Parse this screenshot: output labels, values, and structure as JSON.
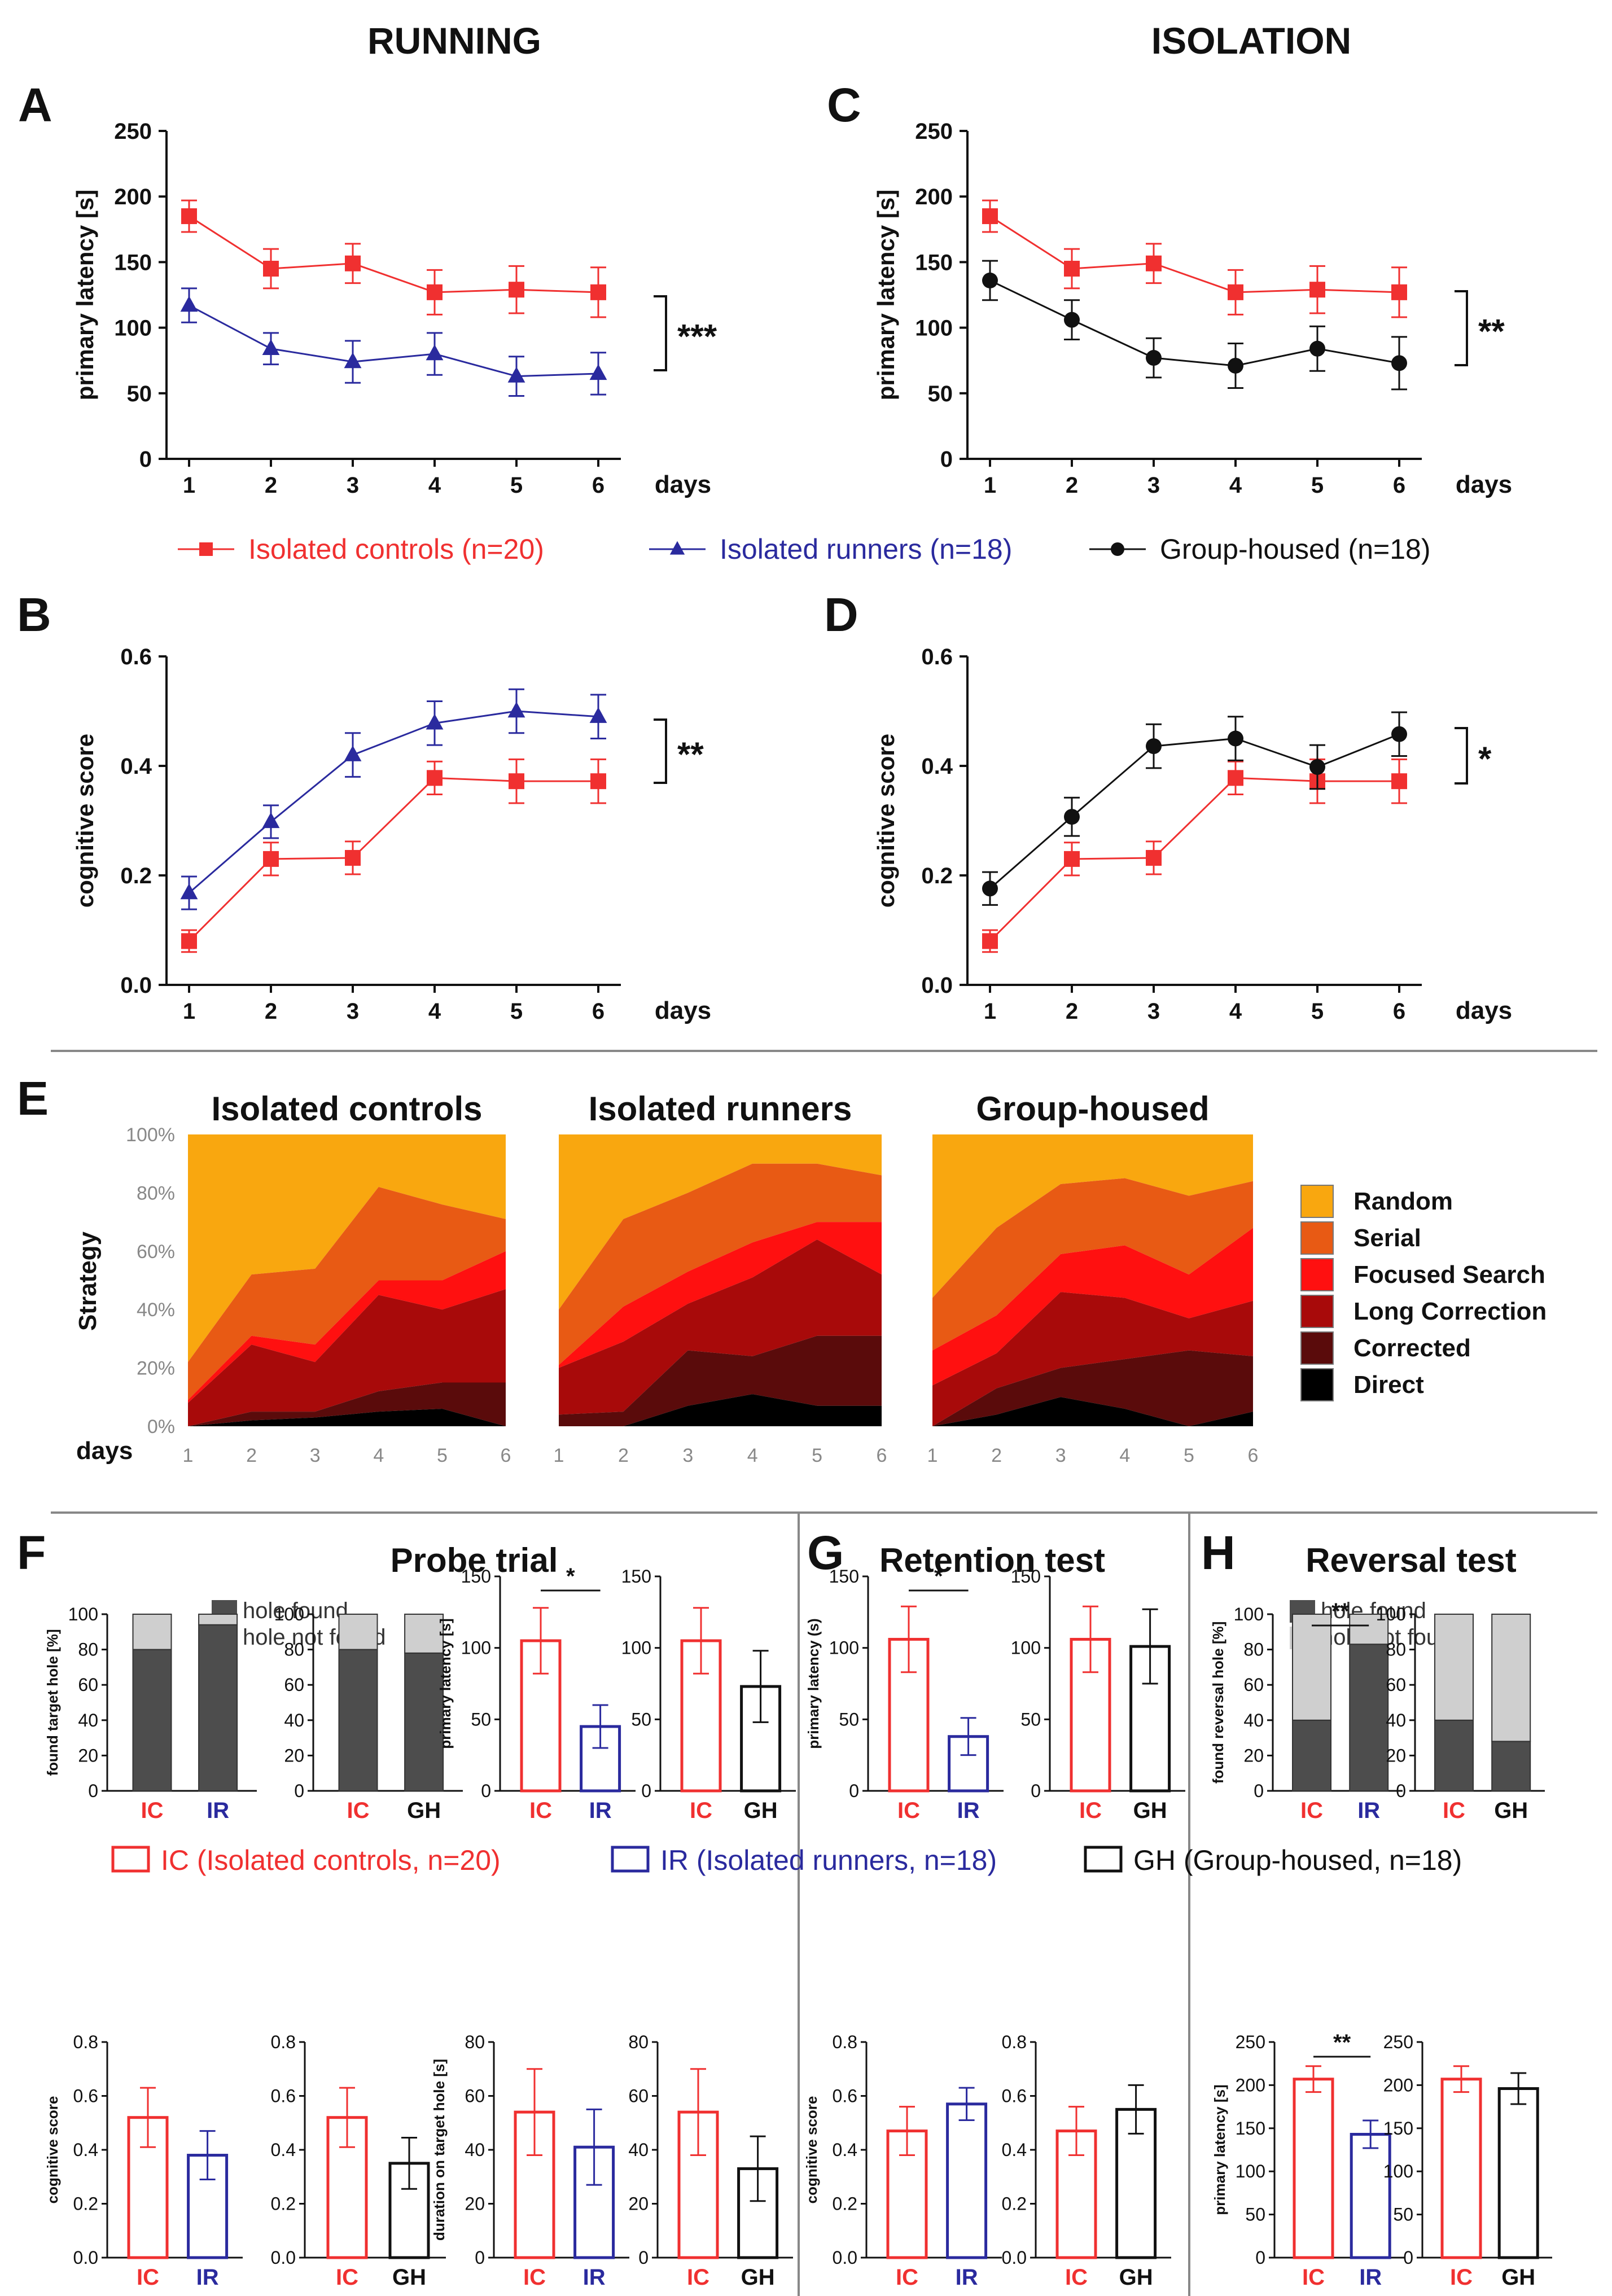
{
  "colors": {
    "ic": "#f03030",
    "ir": "#2a2a9e",
    "gh": "#111111",
    "dark_bar": "#4d4d4d",
    "light_bar": "#cfcfcf",
    "strategy": [
      "#000000",
      "#5a0b0b",
      "#a80a0a",
      "#ff1010",
      "#e85a14",
      "#f9a70f"
    ]
  },
  "headers": {
    "running": "RUNNING",
    "isolation": "ISOLATION"
  },
  "panel_letters": [
    "A",
    "B",
    "C",
    "D",
    "E",
    "F",
    "G",
    "H"
  ],
  "days_label": "days",
  "legend_top": [
    {
      "key": "ic",
      "label": "Isolated controls (n=20)",
      "marker": "square"
    },
    {
      "key": "ir",
      "label": "Isolated runners (n=18)",
      "marker": "triangle"
    },
    {
      "key": "gh",
      "label": "Group-housed (n=18)",
      "marker": "circle"
    }
  ],
  "chart_data": [
    {
      "id": "A",
      "type": "line",
      "title": "",
      "xlabel": "days",
      "ylabel": "primary latency [s]",
      "x": [
        1,
        2,
        3,
        4,
        5,
        6
      ],
      "ylim": [
        0,
        250
      ],
      "yticks": [
        0,
        50,
        100,
        150,
        200,
        250
      ],
      "significance": "***",
      "series": [
        {
          "name": "Isolated controls (n=20)",
          "key": "ic",
          "marker": "square",
          "values": [
            185,
            145,
            149,
            127,
            129,
            127
          ],
          "err": [
            12,
            15,
            15,
            17,
            18,
            19
          ]
        },
        {
          "name": "Isolated runners (n=18)",
          "key": "ir",
          "marker": "triangle",
          "values": [
            117,
            84,
            74,
            80,
            63,
            65
          ],
          "err": [
            13,
            12,
            16,
            16,
            15,
            16
          ]
        }
      ]
    },
    {
      "id": "B",
      "type": "line",
      "title": "",
      "xlabel": "days",
      "ylabel": "cognitive score",
      "x": [
        1,
        2,
        3,
        4,
        5,
        6
      ],
      "ylim": [
        0,
        0.6
      ],
      "yticks": [
        "0.0",
        "0.2",
        "0.4",
        "0.6"
      ],
      "significance": "**",
      "series": [
        {
          "name": "Isolated controls (n=20)",
          "key": "ic",
          "marker": "square",
          "values": [
            0.08,
            0.23,
            0.232,
            0.378,
            0.372,
            0.372
          ],
          "err": [
            0.02,
            0.03,
            0.03,
            0.03,
            0.04,
            0.04
          ]
        },
        {
          "name": "Isolated runners (n=18)",
          "key": "ir",
          "marker": "triangle",
          "values": [
            0.168,
            0.298,
            0.42,
            0.478,
            0.5,
            0.49
          ],
          "err": [
            0.03,
            0.03,
            0.04,
            0.04,
            0.04,
            0.04
          ]
        }
      ]
    },
    {
      "id": "C",
      "type": "line",
      "title": "",
      "xlabel": "days",
      "ylabel": "primary latency [s]",
      "x": [
        1,
        2,
        3,
        4,
        5,
        6
      ],
      "ylim": [
        0,
        250
      ],
      "yticks": [
        0,
        50,
        100,
        150,
        200,
        250
      ],
      "significance": "**",
      "series": [
        {
          "name": "Isolated controls (n=20)",
          "key": "ic",
          "marker": "square",
          "values": [
            185,
            145,
            149,
            127,
            129,
            127
          ],
          "err": [
            12,
            15,
            15,
            17,
            18,
            19
          ]
        },
        {
          "name": "Group-housed (n=18)",
          "key": "gh",
          "marker": "circle",
          "values": [
            136,
            106,
            77,
            71,
            84,
            73
          ],
          "err": [
            15,
            15,
            15,
            17,
            17,
            20
          ]
        }
      ]
    },
    {
      "id": "D",
      "type": "line",
      "title": "",
      "xlabel": "days",
      "ylabel": "cognitive score",
      "x": [
        1,
        2,
        3,
        4,
        5,
        6
      ],
      "ylim": [
        0,
        0.6
      ],
      "yticks": [
        "0.0",
        "0.2",
        "0.4",
        "0.6"
      ],
      "significance": "*",
      "series": [
        {
          "name": "Isolated controls (n=20)",
          "key": "ic",
          "marker": "square",
          "values": [
            0.08,
            0.23,
            0.232,
            0.378,
            0.372,
            0.372
          ],
          "err": [
            0.02,
            0.03,
            0.03,
            0.03,
            0.04,
            0.04
          ]
        },
        {
          "name": "Group-housed (n=18)",
          "key": "gh",
          "marker": "circle",
          "values": [
            0.176,
            0.307,
            0.436,
            0.45,
            0.398,
            0.458
          ],
          "err": [
            0.03,
            0.035,
            0.04,
            0.04,
            0.04,
            0.04
          ]
        }
      ]
    },
    {
      "id": "E",
      "type": "area",
      "ylabel": "Strategy",
      "xlabel": "days",
      "yticks": [
        "0%",
        "20%",
        "40%",
        "60%",
        "80%",
        "100%"
      ],
      "x": [
        1,
        2,
        3,
        4,
        5,
        6
      ],
      "strategies": [
        "Direct",
        "Corrected",
        "Long Correction",
        "Focused Search",
        "Serial",
        "Random"
      ],
      "legend_order": [
        "Random",
        "Serial",
        "Focused Search",
        "Long Correction",
        "Corrected",
        "Direct"
      ],
      "panels": [
        {
          "title": "Isolated controls",
          "cumulative": [
            [
              0,
              2,
              3,
              5,
              6,
              0
            ],
            [
              0,
              5,
              5,
              12,
              15,
              15
            ],
            [
              8,
              28,
              22,
              45,
              40,
              47
            ],
            [
              9,
              31,
              28,
              50,
              50,
              60
            ],
            [
              22,
              52,
              54,
              82,
              76,
              71
            ],
            [
              100,
              100,
              100,
              100,
              100,
              100
            ]
          ]
        },
        {
          "title": "Isolated runners",
          "cumulative": [
            [
              0,
              0,
              7,
              11,
              7,
              7
            ],
            [
              4,
              5,
              26,
              24,
              31,
              31
            ],
            [
              20,
              29,
              42,
              51,
              64,
              52
            ],
            [
              21,
              41,
              53,
              63,
              70,
              70
            ],
            [
              40,
              71,
              80,
              90,
              90,
              86
            ],
            [
              100,
              100,
              100,
              100,
              100,
              100
            ]
          ]
        },
        {
          "title": "Group-housed",
          "cumulative": [
            [
              0,
              4,
              10,
              6,
              0,
              5
            ],
            [
              0,
              13,
              20,
              23,
              26,
              24
            ],
            [
              14,
              25,
              46,
              44,
              37,
              43
            ],
            [
              26,
              38,
              59,
              62,
              52,
              68
            ],
            [
              44,
              68,
              83,
              85,
              79,
              84
            ],
            [
              100,
              100,
              100,
              100,
              100,
              100
            ]
          ]
        }
      ]
    },
    {
      "id": "F1",
      "type": "bar",
      "stacked": true,
      "ylabel": "found target hole [%]",
      "ylim": [
        0,
        100
      ],
      "yticks": [
        0,
        20,
        40,
        60,
        80,
        100
      ],
      "categories": [
        "IC",
        "IR"
      ],
      "series": [
        {
          "name": "hole found",
          "values": [
            80,
            94
          ]
        },
        {
          "name": "hole not found",
          "values": [
            20,
            6
          ]
        }
      ]
    },
    {
      "id": "F2",
      "type": "bar",
      "stacked": true,
      "ylabel": "",
      "ylim": [
        0,
        100
      ],
      "yticks": [
        0,
        20,
        40,
        60,
        80,
        100
      ],
      "categories": [
        "IC",
        "GH"
      ],
      "series": [
        {
          "name": "hole found",
          "values": [
            80,
            78
          ]
        },
        {
          "name": "hole not found",
          "values": [
            20,
            22
          ]
        }
      ]
    },
    {
      "id": "F3",
      "type": "bar",
      "ylabel": "primary latency [s]",
      "ylim": [
        0,
        150
      ],
      "yticks": [
        0,
        50,
        100,
        150
      ],
      "categories": [
        "IC",
        "IR"
      ],
      "values": [
        105,
        45
      ],
      "err": [
        23,
        15
      ],
      "significance": "*"
    },
    {
      "id": "F4",
      "type": "bar",
      "ylabel": "",
      "ylim": [
        0,
        150
      ],
      "yticks": [
        0,
        50,
        100,
        150
      ],
      "categories": [
        "IC",
        "GH"
      ],
      "values": [
        105,
        73
      ],
      "err": [
        23,
        25
      ]
    },
    {
      "id": "G1",
      "type": "bar",
      "ylabel": "primary latency (s)",
      "ylim": [
        0,
        150
      ],
      "yticks": [
        0,
        50,
        100,
        150
      ],
      "categories": [
        "IC",
        "IR"
      ],
      "values": [
        106,
        38
      ],
      "err": [
        23,
        13
      ],
      "significance": "*"
    },
    {
      "id": "G2",
      "type": "bar",
      "ylabel": "",
      "ylim": [
        0,
        150
      ],
      "yticks": [
        0,
        50,
        100,
        150
      ],
      "categories": [
        "IC",
        "GH"
      ],
      "values": [
        106,
        101
      ],
      "err": [
        23,
        26
      ]
    },
    {
      "id": "H1",
      "type": "bar",
      "stacked": true,
      "ylabel": "found reversal hole [%]",
      "ylim": [
        0,
        100
      ],
      "yticks": [
        0,
        20,
        40,
        60,
        80,
        100
      ],
      "categories": [
        "IC",
        "IR"
      ],
      "significance": "**",
      "series": [
        {
          "name": "hole found",
          "values": [
            40,
            83
          ]
        },
        {
          "name": "hole not found",
          "values": [
            60,
            17
          ]
        }
      ]
    },
    {
      "id": "H2",
      "type": "bar",
      "stacked": true,
      "ylabel": "",
      "ylim": [
        0,
        100
      ],
      "yticks": [
        0,
        20,
        40,
        60,
        80,
        100
      ],
      "categories": [
        "IC",
        "GH"
      ],
      "series": [
        {
          "name": "hole found",
          "values": [
            40,
            28
          ]
        },
        {
          "name": "hole not found",
          "values": [
            60,
            72
          ]
        }
      ]
    },
    {
      "id": "F5",
      "type": "bar",
      "ylabel": "cognitive score",
      "ylim": [
        0,
        0.8
      ],
      "yticks": [
        "0.0",
        "0.2",
        "0.4",
        "0.6",
        "0.8"
      ],
      "categories": [
        "IC",
        "IR"
      ],
      "values": [
        0.52,
        0.38
      ],
      "err": [
        0.11,
        0.09
      ]
    },
    {
      "id": "F6",
      "type": "bar",
      "ylabel": "",
      "ylim": [
        0,
        0.8
      ],
      "yticks": [
        "0.0",
        "0.2",
        "0.4",
        "0.6",
        "0.8"
      ],
      "categories": [
        "IC",
        "GH"
      ],
      "values": [
        0.52,
        0.35
      ],
      "err": [
        0.11,
        0.095
      ]
    },
    {
      "id": "F7",
      "type": "bar",
      "ylabel": "duration on target hole [s]",
      "ylim": [
        0,
        80
      ],
      "yticks": [
        0,
        20,
        40,
        60,
        80
      ],
      "categories": [
        "IC",
        "IR"
      ],
      "values": [
        54,
        41
      ],
      "err": [
        16,
        14
      ]
    },
    {
      "id": "F8",
      "type": "bar",
      "ylabel": "",
      "ylim": [
        0,
        80
      ],
      "yticks": [
        0,
        20,
        40,
        60,
        80
      ],
      "categories": [
        "IC",
        "GH"
      ],
      "values": [
        54,
        33
      ],
      "err": [
        16,
        12
      ]
    },
    {
      "id": "G3",
      "type": "bar",
      "ylabel": "cognitive score",
      "ylim": [
        0,
        0.8
      ],
      "yticks": [
        "0.0",
        "0.2",
        "0.4",
        "0.6",
        "0.8"
      ],
      "categories": [
        "IC",
        "IR"
      ],
      "values": [
        0.47,
        0.57
      ],
      "err": [
        0.09,
        0.06
      ]
    },
    {
      "id": "G4",
      "type": "bar",
      "ylabel": "",
      "ylim": [
        0,
        0.8
      ],
      "yticks": [
        "0.0",
        "0.2",
        "0.4",
        "0.6",
        "0.8"
      ],
      "categories": [
        "IC",
        "GH"
      ],
      "values": [
        0.47,
        0.55
      ],
      "err": [
        0.09,
        0.09
      ]
    },
    {
      "id": "H3",
      "type": "bar",
      "ylabel": "primary latency [s]",
      "ylim": [
        0,
        250
      ],
      "yticks": [
        0,
        50,
        100,
        150,
        200,
        250
      ],
      "categories": [
        "IC",
        "IR"
      ],
      "values": [
        207,
        143
      ],
      "err": [
        15,
        16
      ],
      "significance": "**"
    },
    {
      "id": "H4",
      "type": "bar",
      "ylabel": "",
      "ylim": [
        0,
        250
      ],
      "yticks": [
        0,
        50,
        100,
        150,
        200,
        250
      ],
      "categories": [
        "IC",
        "GH"
      ],
      "values": [
        207,
        196
      ],
      "err": [
        15,
        18
      ]
    }
  ],
  "section_titles": {
    "F": "Probe trial",
    "G": "Retention test",
    "H": "Reversal test"
  },
  "hole_legend": [
    "hole found",
    "hole not found"
  ],
  "bar_legend": [
    {
      "key": "ic",
      "label": "IC (Isolated controls, n=20)"
    },
    {
      "key": "ir",
      "label": "IR (Isolated runners, n=18)"
    },
    {
      "key": "gh",
      "label": "GH (Group-housed, n=18)"
    }
  ]
}
